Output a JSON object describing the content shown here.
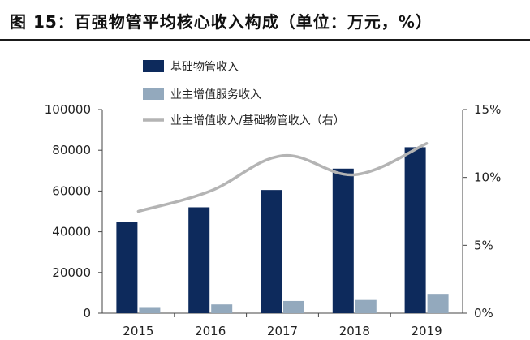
{
  "title": "图 15：百强物管平均核心收入构成（单位：万元，%）",
  "chart_data": {
    "type": "bar",
    "categories": [
      "2015",
      "2016",
      "2017",
      "2018",
      "2019"
    ],
    "series": [
      {
        "name": "基础物管收入",
        "values": [
          45000,
          52000,
          60500,
          71000,
          81500
        ],
        "color": "#0d2a5c",
        "axis": "left"
      },
      {
        "name": "业主增值服务收入",
        "values": [
          3000,
          4300,
          6000,
          6500,
          9500
        ],
        "color": "#93a9bd",
        "axis": "left"
      },
      {
        "name": "业主增值收入/基础物管收入（右）",
        "type": "line",
        "values": [
          7.5,
          9.0,
          11.6,
          10.2,
          12.5
        ],
        "color": "#b4b4b4",
        "axis": "right"
      }
    ],
    "yleft": {
      "min": 0,
      "max": 100000,
      "ticks": [
        "0",
        "20000",
        "40000",
        "60000",
        "80000",
        "100000"
      ]
    },
    "yright": {
      "min": 0,
      "max": 15,
      "ticks": [
        "0%",
        "5%",
        "10%",
        "15%"
      ]
    },
    "legend_position": "top-left",
    "grid": false
  }
}
